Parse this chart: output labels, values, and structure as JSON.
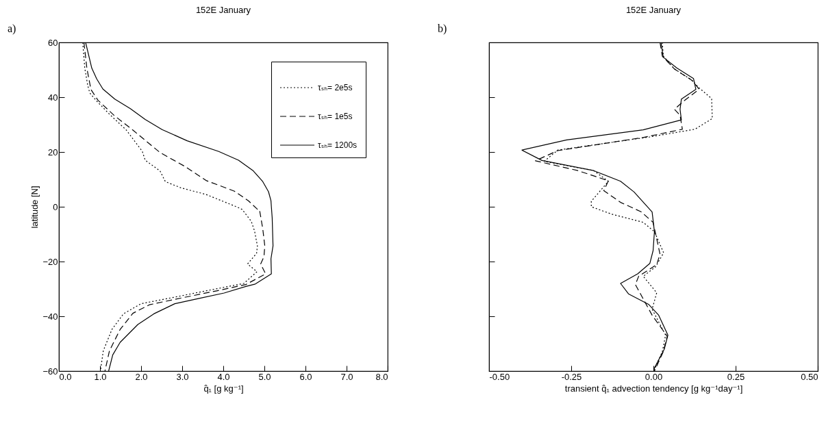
{
  "chart_data": [
    {
      "type": "line",
      "title": "152E   January",
      "xlabel": "q̂₁  [g kg⁻¹]",
      "ylabel": "latitude [N]",
      "annotations": [
        "a)"
      ],
      "xlim": [
        0,
        8
      ],
      "xticks": [
        {
          "value": 0,
          "label": "0.0"
        },
        {
          "value": 1,
          "label": "1.0"
        },
        {
          "value": 2,
          "label": "2.0"
        },
        {
          "value": 3,
          "label": "3.0"
        },
        {
          "value": 4,
          "label": "4.0"
        },
        {
          "value": 5,
          "label": "5.0"
        },
        {
          "value": 6,
          "label": "6.0"
        },
        {
          "value": 7,
          "label": "7.0"
        },
        {
          "value": 8,
          "label": "8.0"
        }
      ],
      "ylim": [
        -60,
        60
      ],
      "yticks": [
        -60,
        -40,
        -20,
        0,
        20,
        40,
        60
      ],
      "grid": false,
      "legend": "top right",
      "series": [
        {
          "name": "τₛₕ= 2e5s",
          "color": "#000000",
          "line_style": "dotted",
          "x": [
            0.58,
            0.63,
            0.7,
            0.75,
            0.9,
            1.23,
            1.64,
            2.03,
            2.1,
            2.46,
            2.59,
            2.97,
            3.58,
            4.09,
            4.35,
            4.46,
            4.68,
            4.76,
            4.83,
            4.81,
            4.59,
            4.82,
            4.5,
            3.58,
            2.82,
            2.0,
            1.57,
            1.29,
            1.08,
            1.01
          ],
          "values": [
            60,
            50.6,
            44.4,
            41.6,
            38.9,
            33.8,
            28,
            20.2,
            17,
            13.1,
            9.2,
            6.9,
            4.5,
            1.4,
            -0.2,
            -1,
            -5.3,
            -8.8,
            -14.3,
            -17,
            -20.9,
            -23.7,
            -28,
            -30.7,
            -33,
            -35.4,
            -39.1,
            -44.8,
            -52.6,
            -60
          ]
        },
        {
          "name": "τₛₕ= 1e5s",
          "color": "#000000",
          "line_style": "dashed",
          "x": [
            0.61,
            0.68,
            0.73,
            0.78,
            0.95,
            1.34,
            1.8,
            2.46,
            3.07,
            3.58,
            4.27,
            4.61,
            4.83,
            4.88,
            4.96,
            5.01,
            4.99,
            4.91,
            4.95,
            5.03,
            4.55,
            3.84,
            2.82,
            2.2,
            1.8,
            1.49,
            1.23,
            1.12
          ],
          "values": [
            60,
            50.6,
            46.7,
            42.8,
            38.9,
            33.4,
            28,
            19.8,
            14.7,
            9.6,
            5.7,
            2.2,
            -0.9,
            -1,
            -8,
            -14.3,
            -18.2,
            -20.9,
            -22.1,
            -24.5,
            -28.4,
            -30.7,
            -33.8,
            -35.8,
            -38.9,
            -44.8,
            -52.6,
            -60
          ]
        },
        {
          "name": "τₛₕ= 1200s",
          "color": "#000000",
          "line_style": "solid",
          "x": [
            0.65,
            0.8,
            0.92,
            1.07,
            1.36,
            1.74,
            2.1,
            2.51,
            3.12,
            3.89,
            4.37,
            4.73,
            4.96,
            5.1,
            5.16,
            5.17,
            5.19,
            5.21,
            5.16,
            5.17,
            4.78,
            4.55,
            4.02,
            3.43,
            2.82,
            2.31,
            1.92,
            1.49,
            1.31,
            1.21
          ],
          "values": [
            60,
            50.6,
            46.7,
            43,
            39.3,
            35.8,
            31.9,
            28.2,
            24.1,
            20.2,
            17,
            13.1,
            9.2,
            5.5,
            2.2,
            0,
            -4.1,
            -14.3,
            -19,
            -24.5,
            -28.2,
            -29.1,
            -31.5,
            -33.4,
            -35.4,
            -39.1,
            -43,
            -49.5,
            -54.1,
            -60
          ]
        }
      ]
    },
    {
      "type": "line",
      "title": "152E   January",
      "xlabel": "transient q̂₁ advection tendency   [g kg⁻¹day⁻¹]",
      "annotations": [
        "b)"
      ],
      "xlim": [
        -0.5,
        0.5
      ],
      "xticks": [
        {
          "value": -0.5,
          "label": "-0.50"
        },
        {
          "value": -0.25,
          "label": "-0.25"
        },
        {
          "value": 0,
          "label": "0.00"
        },
        {
          "value": 0.25,
          "label": "0.25"
        },
        {
          "value": 0.5,
          "label": "0.50"
        }
      ],
      "ylim": [
        -60,
        60
      ],
      "yticks": [
        -60,
        -40,
        -20,
        0,
        20,
        40,
        60
      ],
      "tick_labels": "x",
      "grid": false,
      "series": [
        {
          "color": "#000000",
          "line_style": "dotted",
          "x": [
            0.027,
            0.03,
            0.064,
            0.115,
            0.139,
            0.177,
            0.179,
            0.126,
            -0.011,
            -0.291,
            -0.332,
            -0.182,
            -0.137,
            -0.189,
            -0.189,
            -0.127,
            -0.031,
            0.003,
            0.031,
            0.006,
            -0.031,
            0.01,
            -0.004,
            0.037,
            0.027,
            0.001
          ],
          "values": [
            60,
            55,
            50.3,
            46.4,
            43.4,
            39.5,
            32.2,
            28.3,
            25.5,
            20.7,
            16.6,
            13.2,
            9.3,
            2,
            0,
            -2.7,
            -5.7,
            -9.1,
            -16.8,
            -22,
            -25.4,
            -31.4,
            -37.4,
            -46.9,
            -52.9,
            -60
          ]
        },
        {
          "color": "#000000",
          "line_style": "dashed",
          "x": [
            0.02,
            0.027,
            0.064,
            0.119,
            0.139,
            0.092,
            0.064,
            0.081,
            0.088,
            -0.031,
            -0.291,
            -0.359,
            -0.23,
            -0.137,
            -0.151,
            -0.1,
            -0.038,
            -0.001,
            0.02,
            0.01,
            -0.045,
            -0.055,
            -0.004,
            0.042,
            0.03,
            0.003
          ],
          "values": [
            60,
            55,
            50.3,
            46,
            42.9,
            38.6,
            35.6,
            33.4,
            28.3,
            25.3,
            20.5,
            16.8,
            13.2,
            9.5,
            5.9,
            1.6,
            -1.8,
            -5.7,
            -17.3,
            -21.1,
            -25.4,
            -28.4,
            -39.6,
            -47.3,
            -52.9,
            -60
          ]
        },
        {
          "color": "#000000",
          "line_style": "solid",
          "x": [
            0.023,
            0.03,
            0.071,
            0.122,
            0.129,
            0.085,
            0.081,
            0.085,
            -0.031,
            -0.264,
            -0.4,
            -0.339,
            -0.182,
            -0.1,
            -0.059,
            -0.004,
            0.003,
            -0.001,
            -0.011,
            -0.048,
            -0.1,
            -0.076,
            -0.014,
            0.016,
            0.044,
            0.033,
            0.003,
            0.001
          ],
          "values": [
            60,
            54.6,
            50.7,
            46.8,
            42.9,
            39.3,
            35.6,
            31.7,
            28.1,
            24.4,
            20.7,
            16.9,
            13.2,
            9.3,
            5.4,
            -1.9,
            -9.1,
            -16,
            -20.7,
            -24.5,
            -28,
            -31.8,
            -35.7,
            -39.6,
            -46.9,
            -52,
            -58.9,
            -60
          ]
        }
      ]
    }
  ]
}
